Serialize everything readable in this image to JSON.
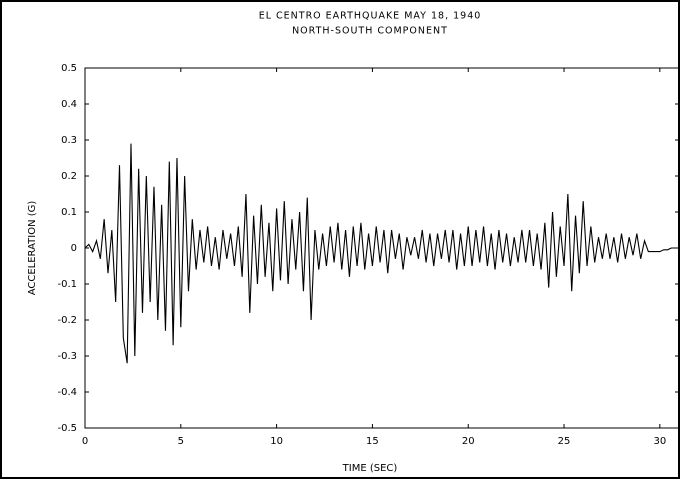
{
  "chart_data": {
    "type": "line",
    "title": "EL CENTRO EARTHQUAKE  MAY 18, 1940",
    "subtitle": "NORTH-SOUTH COMPONENT",
    "x_label": "TIME (SEC)",
    "y_label": "ACCELERATION (G)",
    "color": "#000000",
    "xlim": [
      0,
      31
    ],
    "xticks": [
      0,
      5,
      10,
      15,
      20,
      25,
      30
    ],
    "ylim": [
      -0.5,
      0.5
    ],
    "yticks": [
      0.5,
      0.4,
      0.3,
      0.2,
      0.1,
      0,
      -0.1,
      -0.2,
      -0.3,
      -0.4,
      -0.5
    ],
    "x": [
      0,
      0.2,
      0.4,
      0.6,
      0.8,
      1.0,
      1.2,
      1.4,
      1.6,
      1.8,
      2.0,
      2.2,
      2.4,
      2.6,
      2.8,
      3.0,
      3.2,
      3.4,
      3.6,
      3.8,
      4.0,
      4.2,
      4.4,
      4.6,
      4.8,
      5.0,
      5.2,
      5.4,
      5.6,
      5.8,
      6.0,
      6.2,
      6.4,
      6.6,
      6.8,
      7.0,
      7.2,
      7.4,
      7.6,
      7.8,
      8.0,
      8.2,
      8.4,
      8.6,
      8.8,
      9.0,
      9.2,
      9.4,
      9.6,
      9.8,
      10.0,
      10.2,
      10.4,
      10.6,
      10.8,
      11.0,
      11.2,
      11.4,
      11.6,
      11.8,
      12.0,
      12.2,
      12.4,
      12.6,
      12.8,
      13.0,
      13.2,
      13.4,
      13.6,
      13.8,
      14.0,
      14.2,
      14.4,
      14.6,
      14.8,
      15.0,
      15.2,
      15.4,
      15.6,
      15.8,
      16.0,
      16.2,
      16.4,
      16.6,
      16.8,
      17.0,
      17.2,
      17.4,
      17.6,
      17.8,
      18.0,
      18.2,
      18.4,
      18.6,
      18.8,
      19.0,
      19.2,
      19.4,
      19.6,
      19.8,
      20.0,
      20.2,
      20.4,
      20.6,
      20.8,
      21.0,
      21.2,
      21.4,
      21.6,
      21.8,
      22.0,
      22.2,
      22.4,
      22.6,
      22.8,
      23.0,
      23.2,
      23.4,
      23.6,
      23.8,
      24.0,
      24.2,
      24.4,
      24.6,
      24.8,
      25.0,
      25.2,
      25.4,
      25.6,
      25.8,
      26.0,
      26.2,
      26.4,
      26.6,
      26.8,
      27.0,
      27.2,
      27.4,
      27.6,
      27.8,
      28.0,
      28.2,
      28.4,
      28.6,
      28.8,
      29.0,
      29.2,
      29.4,
      29.6,
      29.8,
      30.0,
      30.2,
      30.4,
      30.6,
      30.8,
      31.0
    ],
    "values": [
      0.0,
      0.01,
      -0.01,
      0.02,
      -0.03,
      0.08,
      -0.07,
      0.05,
      -0.15,
      0.23,
      -0.25,
      -0.32,
      0.29,
      -0.3,
      0.22,
      -0.18,
      0.2,
      -0.15,
      0.17,
      -0.2,
      0.12,
      -0.23,
      0.24,
      -0.27,
      0.25,
      -0.22,
      0.2,
      -0.12,
      0.08,
      -0.06,
      0.05,
      -0.04,
      0.06,
      -0.05,
      0.03,
      -0.06,
      0.05,
      -0.03,
      0.04,
      -0.05,
      0.06,
      -0.08,
      0.15,
      -0.18,
      0.09,
      -0.1,
      0.12,
      -0.08,
      0.07,
      -0.12,
      0.11,
      -0.09,
      0.13,
      -0.1,
      0.08,
      -0.06,
      0.1,
      -0.12,
      0.14,
      -0.2,
      0.05,
      -0.06,
      0.04,
      -0.05,
      0.06,
      -0.04,
      0.07,
      -0.06,
      0.05,
      -0.08,
      0.06,
      -0.05,
      0.07,
      -0.06,
      0.04,
      -0.05,
      0.06,
      -0.04,
      0.05,
      -0.07,
      0.05,
      -0.03,
      0.04,
      -0.06,
      0.03,
      -0.02,
      0.03,
      -0.03,
      0.05,
      -0.04,
      0.04,
      -0.05,
      0.04,
      -0.03,
      0.05,
      -0.04,
      0.05,
      -0.06,
      0.04,
      -0.05,
      0.06,
      -0.05,
      0.05,
      -0.04,
      0.06,
      -0.05,
      0.04,
      -0.06,
      0.05,
      -0.04,
      0.04,
      -0.05,
      0.03,
      -0.04,
      0.05,
      -0.04,
      0.05,
      -0.05,
      0.04,
      -0.06,
      0.07,
      -0.11,
      0.1,
      -0.08,
      0.06,
      -0.05,
      0.15,
      -0.12,
      0.09,
      -0.07,
      0.13,
      -0.05,
      0.06,
      -0.04,
      0.03,
      -0.03,
      0.04,
      -0.03,
      0.03,
      -0.04,
      0.04,
      -0.03,
      0.03,
      -0.02,
      0.04,
      -0.03,
      0.02,
      -0.01,
      -0.01,
      -0.01,
      -0.01,
      -0.005,
      -0.005,
      0,
      0,
      0
    ]
  }
}
